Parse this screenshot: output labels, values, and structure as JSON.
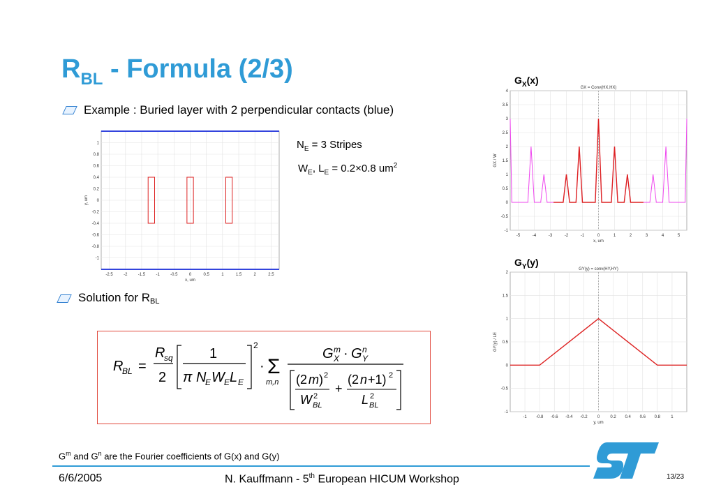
{
  "title": {
    "main": "R",
    "sub": "BL",
    "rest": " - Formula (2/3)"
  },
  "bullets": {
    "example": "Example : Buried layer with 2 perpendicular contacts (blue)",
    "solution_main": "Solution for R",
    "solution_sub": "BL"
  },
  "notes": {
    "ne_main": "N",
    "ne_sub": "E",
    "ne_rest": " = 3 Stripes",
    "we_a": "W",
    "we_b": "E",
    "we_c": ", L",
    "we_d": "E",
    "we_e": " = 0.2×0.8 um",
    "we_f": "2"
  },
  "plot_titles": {
    "gx_main": "G",
    "gx_sub": "X",
    "gx_rest": "(x)",
    "gy_main": "G",
    "gy_sub": "Y",
    "gy_rest": "(y)"
  },
  "caption": {
    "a": "G",
    "b": "m",
    "c": " and G",
    "d": "n",
    "e": " are the Fourier coefficients of G(x) and G(y)"
  },
  "footer": {
    "date": "6/6/2005",
    "center_a": "N. Kauffmann - 5",
    "center_b": "th",
    "center_c": " European HICUM Workshop",
    "page": "13/23"
  },
  "chart_data": [
    {
      "type": "line",
      "name": "layout",
      "xlabel": "x, um",
      "ylabel": "y, um",
      "xlim": [
        -2.75,
        2.75
      ],
      "ylim": [
        -1.2,
        1.2
      ],
      "xticks": [
        -2.5,
        -2,
        -1.5,
        -1,
        -0.5,
        0,
        0.5,
        1,
        1.5,
        2,
        2.5
      ],
      "yticks": [
        -1,
        -0.8,
        -0.6,
        -0.4,
        -0.2,
        0,
        0.2,
        0.4,
        0.6,
        0.8,
        1
      ],
      "stripes": [
        {
          "x": [
            -1.3,
            -1.1
          ],
          "y": [
            -0.4,
            0.4
          ]
        },
        {
          "x": [
            -0.1,
            0.1
          ],
          "y": [
            -0.4,
            0.4
          ]
        },
        {
          "x": [
            1.1,
            1.3
          ],
          "y": [
            -0.4,
            0.4
          ]
        }
      ],
      "contacts_y": [
        1.2,
        -1.2
      ],
      "colors": {
        "stripe": "#dd2222",
        "contact": "#3344dd"
      }
    },
    {
      "type": "line",
      "name": "gx",
      "title": "GX = Conv(HX,HX)",
      "xlabel": "x, um",
      "ylabel": "GX / W",
      "xlim": [
        -5.5,
        5.5
      ],
      "ylim": [
        -1,
        4
      ],
      "xticks": [
        -5,
        -4,
        -3,
        -2,
        -1,
        0,
        1,
        2,
        3,
        4,
        5
      ],
      "yticks": [
        -1,
        -0.5,
        0,
        0.5,
        1,
        1.5,
        2,
        2.5,
        3,
        3.5,
        4
      ],
      "series": [
        {
          "color": "#ee44ee",
          "x": [
            -5.5,
            -5.4,
            -5.2,
            -4.4,
            -4.2,
            -4.0,
            -3.6,
            -3.4,
            -3.2,
            -2.8,
            -2.6,
            -2.4,
            -2.2,
            -2.0,
            -1.8,
            -1.6,
            -1.4,
            -1.2,
            -1.0,
            -0.8,
            -0.6,
            -0.4,
            -0.2,
            0.0,
            0.2,
            0.4,
            0.6,
            0.8,
            1.0,
            1.2,
            1.4,
            1.6,
            1.8,
            2.0,
            2.2,
            2.4,
            2.6,
            2.8,
            3.2,
            3.4,
            3.6,
            4.0,
            4.2,
            4.4,
            5.2,
            5.4,
            5.5
          ],
          "y": [
            3,
            0,
            0,
            0,
            2,
            0,
            0,
            1,
            0,
            0,
            0,
            0,
            0,
            1,
            0,
            0,
            0,
            2,
            0,
            0,
            0,
            0,
            0,
            3,
            0,
            0,
            0,
            0,
            2,
            0,
            0,
            0,
            1,
            0,
            0,
            0,
            0,
            0,
            0,
            1,
            0,
            0,
            2,
            0,
            0,
            0,
            3
          ]
        },
        {
          "color": "#dd2222",
          "x": [
            -2.8,
            -2.6,
            -2.4,
            -2.2,
            -2.0,
            -1.8,
            -1.6,
            -1.4,
            -1.2,
            -1.0,
            -0.8,
            -0.6,
            -0.4,
            -0.2,
            0.0,
            0.2,
            0.4,
            0.6,
            0.8,
            1.0,
            1.2,
            1.4,
            1.6,
            1.8,
            2.0,
            2.2,
            2.4,
            2.6,
            2.8
          ],
          "y": [
            0,
            0,
            0,
            0,
            1,
            0,
            0,
            0,
            2,
            0,
            0,
            0,
            0,
            0,
            3,
            0,
            0,
            0,
            0,
            2,
            0,
            0,
            0,
            1,
            0,
            0,
            0,
            0,
            0
          ]
        }
      ]
    },
    {
      "type": "line",
      "name": "gy",
      "title": "GY(y) = conv(HY,HY)",
      "xlabel": "y, um",
      "ylabel": "GY(y) / LE",
      "xlim": [
        -1.2,
        1.2
      ],
      "ylim": [
        -1,
        2
      ],
      "xticks": [
        -1,
        -0.8,
        -0.6,
        -0.4,
        -0.2,
        0,
        0.2,
        0.4,
        0.6,
        0.8,
        1
      ],
      "yticks": [
        -1,
        -0.5,
        0,
        0.5,
        1,
        1.5,
        2
      ],
      "series": [
        {
          "color": "#dd2222",
          "x": [
            -1.2,
            -0.8,
            0,
            0.8,
            1.2
          ],
          "y": [
            0,
            0,
            1,
            0,
            0
          ]
        }
      ]
    }
  ]
}
